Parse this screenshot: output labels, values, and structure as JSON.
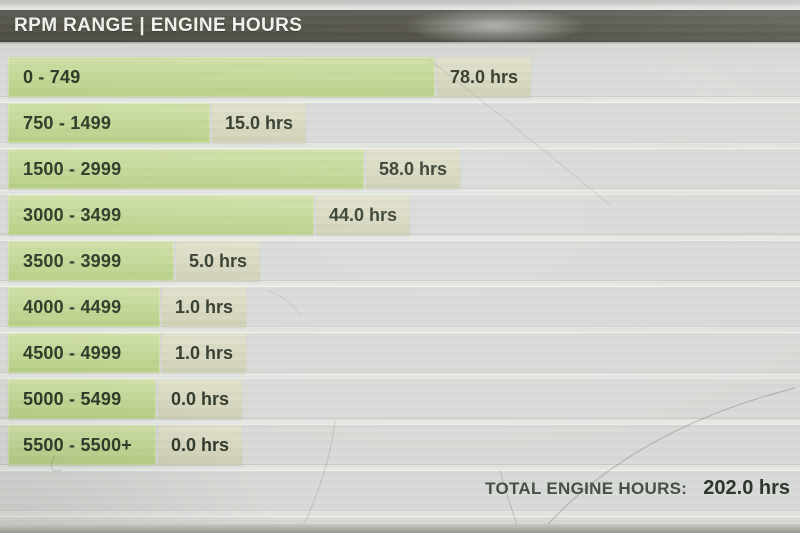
{
  "header": {
    "title": "RPM RANGE | ENGINE HOURS"
  },
  "chart_data": {
    "type": "bar",
    "orientation": "horizontal",
    "title": "RPM RANGE | ENGINE HOURS",
    "unit": "hrs",
    "categories": [
      "0 - 749",
      "750 - 1499",
      "1500 - 2999",
      "3000 - 3499",
      "3500 - 3999",
      "4000 - 4499",
      "4500 - 4999",
      "5000 - 5499",
      "5500 - 5500+"
    ],
    "values": [
      78.0,
      15.0,
      58.0,
      44.0,
      5.0,
      1.0,
      1.0,
      0.0,
      0.0
    ],
    "value_labels": [
      "78.0 hrs",
      "15.0 hrs",
      "58.0 hrs",
      "44.0 hrs",
      "5.0 hrs",
      "1.0 hrs",
      "1.0 hrs",
      "0.0 hrs",
      "0.0 hrs"
    ],
    "total": 202.0,
    "legend_position": "none",
    "grid": false
  },
  "footer": {
    "total_label": "TOTAL ENGINE HOURS:",
    "total_value": "202.0 hrs"
  },
  "colors": {
    "header_bg": "#54534a",
    "header_text": "#f2f2ee",
    "bar_green": "#c4d897",
    "value_box_beige": "#d8d8c1",
    "bar_text": "#2e3a26",
    "background": "#d5d7d4",
    "total_text": "#2c322c"
  }
}
